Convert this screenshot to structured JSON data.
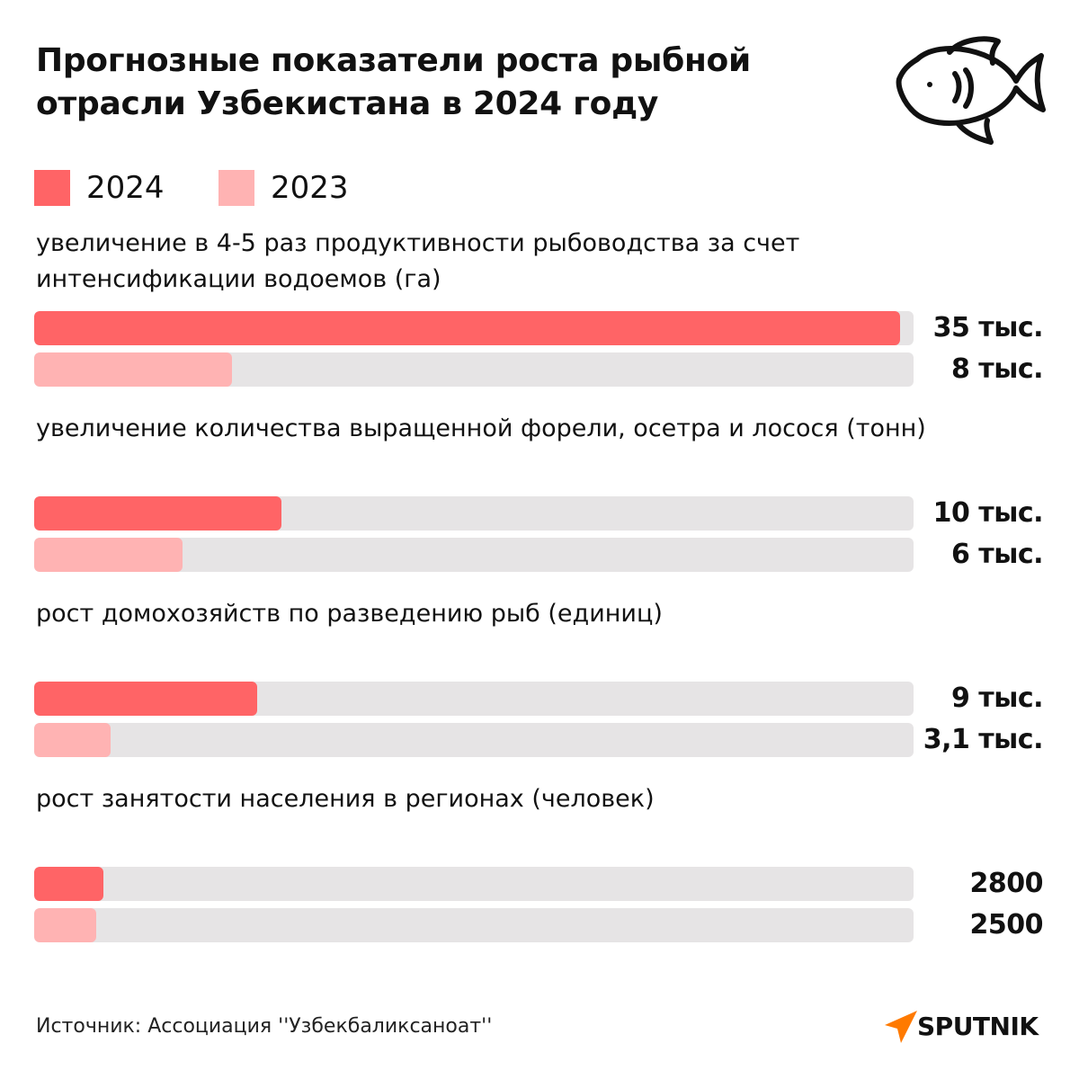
{
  "header": {
    "title": "Прогнозные показатели роста рыбной отрасли Узбекистана в 2024 году",
    "icon": "fish-icon"
  },
  "colors": {
    "series_2024": "#ff6466",
    "series_2023": "#ffb3b3",
    "track": "#e6e4e5",
    "brand": "#ff7a00"
  },
  "legend": [
    {
      "label": "2024",
      "color": "#ff6466"
    },
    {
      "label": "2023",
      "color": "#ffb3b3"
    }
  ],
  "chart_data": {
    "type": "bar",
    "orientation": "horizontal",
    "legend_position": "top-left",
    "grid": false,
    "series": [
      {
        "name": "2024",
        "color": "#ff6466"
      },
      {
        "name": "2023",
        "color": "#ffb3b3"
      }
    ],
    "groups": [
      {
        "label": "увеличение в 4-5 раз продуктивности рыбоводства за счет интенсификации водоемов (га)",
        "bars": [
          {
            "series": "2024",
            "value": 35000,
            "label": "35 тыс."
          },
          {
            "series": "2023",
            "value": 8000,
            "label": "8 тыс."
          }
        ]
      },
      {
        "label": "увеличение количества выращенной форели, осетра и лосося (тонн)",
        "bars": [
          {
            "series": "2024",
            "value": 10000,
            "label": "10 тыс."
          },
          {
            "series": "2023",
            "value": 6000,
            "label": "6 тыс."
          }
        ]
      },
      {
        "label": "рост домохозяйств по разведению рыб (единиц)",
        "bars": [
          {
            "series": "2024",
            "value": 9000,
            "label": "9 тыс."
          },
          {
            "series": "2023",
            "value": 3100,
            "label": "3,1 тыс."
          }
        ]
      },
      {
        "label": "рост занятости населения в регионах (человек)",
        "bars": [
          {
            "series": "2024",
            "value": 2800,
            "label": "2800"
          },
          {
            "series": "2023",
            "value": 2500,
            "label": "2500"
          }
        ]
      }
    ]
  },
  "footer": {
    "source": "Источник: Ассоциация ''Узбекбаликсаноат''",
    "brand": "SPUTNIK",
    "brand_icon": "sputnik-logo-icon"
  }
}
